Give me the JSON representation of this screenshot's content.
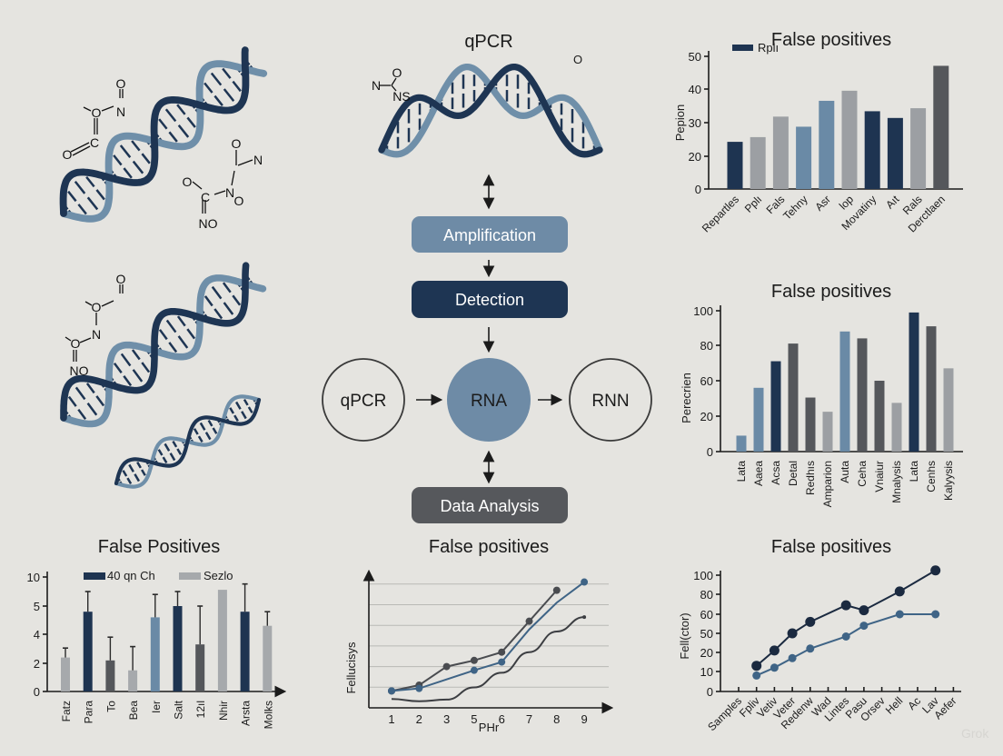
{
  "colors": {
    "background": "#e5e4e0",
    "navy": "#1e3451",
    "steel": "#6a8aa6",
    "gray": "#9c9fa3",
    "darkgray": "#55575b",
    "helix_light": "#6f8fa9",
    "helix_dark": "#1e3553"
  },
  "flow": {
    "title": "qPCR",
    "stray_label": "O",
    "boxes": [
      {
        "label": "Amplification",
        "color": "#6e8ba6"
      },
      {
        "label": "Detection",
        "color": "#1e3553"
      },
      {
        "label": "Data Analysis",
        "color": "#56585c"
      }
    ],
    "circles": [
      {
        "label": "qPCR",
        "filled": false
      },
      {
        "label": "RNA",
        "filled": true,
        "color": "#6e8ba6"
      },
      {
        "label": "RNN",
        "filled": false
      }
    ]
  },
  "molecules": {
    "m1": [
      "O",
      "O",
      "N",
      "O",
      "C"
    ],
    "m2": [
      "O",
      "N",
      "O",
      "N",
      "O",
      "C",
      "NO"
    ],
    "m3": [
      "O",
      "O",
      "N",
      "O",
      "NO"
    ],
    "m4": [
      "O",
      "N",
      "NS"
    ]
  },
  "watermark": "Grok",
  "chart_data": [
    {
      "type": "bar",
      "title": "False positives",
      "ylabel": "Pepion",
      "legend": [
        {
          "name": "Rplı",
          "color": "#1e3451"
        }
      ],
      "legend_placement": "top-left",
      "yticks": [
        0,
        20,
        30,
        40,
        50
      ],
      "categories": [
        "Repartles",
        "Pplı",
        "Fals",
        "Tehny",
        "Asr",
        "lop",
        "Movatiny",
        "Aıt",
        "Rals",
        "Derctlaen"
      ],
      "values": [
        24.3,
        25.7,
        31.8,
        28.8,
        36.5,
        39.5,
        33.4,
        31.4,
        34.3,
        47.1
      ],
      "bar_colors": [
        "#1e3451",
        "#9c9fa3",
        "#9c9fa3",
        "#6a8aa6",
        "#6a8aa6",
        "#9c9fa3",
        "#1e3451",
        "#1e3451",
        "#9c9fa3",
        "#55575b"
      ]
    },
    {
      "type": "bar",
      "title": "False positives",
      "ylabel": "Perecrien",
      "yticks": [
        0,
        20,
        60,
        80,
        100
      ],
      "categories": [
        "Lata",
        "Aaea",
        "Acsa",
        "Detal",
        "Redhıs",
        "Amparion",
        "Auta",
        "Ceha",
        "Vnaiur",
        "Mnalysis",
        "Lata",
        "Cenhs",
        "Kalyysis"
      ],
      "values": [
        9,
        52,
        71,
        81,
        41,
        25,
        88,
        84,
        60,
        35,
        99,
        91,
        67
      ],
      "bar_colors": [
        "#6a8aa6",
        "#6a8aa6",
        "#1e3451",
        "#55575b",
        "#55575b",
        "#9c9fa3",
        "#6a8aa6",
        "#55575b",
        "#55575b",
        "#9c9fa3",
        "#1e3451",
        "#55575b",
        "#9c9fa3"
      ]
    },
    {
      "type": "bar",
      "title": "False Positives",
      "yticks": [
        0,
        2,
        4,
        5,
        10
      ],
      "legend": [
        {
          "name": "40 qn Ch",
          "color": "#1e3451"
        },
        {
          "name": "Sezlo",
          "color": "#a6a9ac"
        }
      ],
      "legend_placement": "top",
      "categories": [
        "Fatz",
        "Para",
        "To",
        "Bea",
        "Ier",
        "Salt",
        "12ıl",
        "Nhir",
        "Arsta",
        "Molks"
      ],
      "values": [
        2.4,
        4.8,
        2.2,
        1.5,
        4.6,
        5.0,
        3.3,
        7.8,
        4.8,
        4.3
      ],
      "error_top": [
        3.05,
        7.5,
        3.8,
        3.15,
        7.0,
        7.5,
        5.0,
        null,
        8.8,
        4.8
      ],
      "bar_colors": [
        "#a6a9ac",
        "#1e3451",
        "#55575b",
        "#a6a9ac",
        "#6a8aa6",
        "#1e3451",
        "#55575b",
        "#a6a9ac",
        "#1e3451",
        "#a6a9ac"
      ]
    },
    {
      "type": "line",
      "title": "False positives",
      "xlabel": "PHr",
      "ylabel": "Fellucisys",
      "grid": true,
      "x": [
        "1",
        "2",
        "3",
        "5",
        "6",
        "7",
        "8",
        "9"
      ],
      "series": [
        {
          "color": "#4a4c50",
          "points": [
            [
              "1",
              0.82
            ],
            [
              "2",
              1.1
            ],
            [
              "3",
              2.0
            ],
            [
              "5",
              2.3
            ],
            [
              "6",
              2.7
            ],
            [
              "7",
              4.2
            ],
            [
              "8",
              5.7
            ]
          ],
          "markers": true
        },
        {
          "color": "#3f6486",
          "points": [
            [
              "1",
              0.82
            ],
            [
              "2",
              0.94
            ],
            [
              "5",
              1.82
            ],
            [
              "6",
              2.22
            ],
            [
              "7",
              3.8
            ],
            [
              "8",
              5.1
            ],
            [
              "9",
              6.1
            ]
          ],
          "marker_mask": [
            true,
            true,
            true,
            true,
            false,
            false,
            true
          ]
        },
        {
          "color": "#3c3e42",
          "points": [
            [
              "1",
              0.43
            ],
            [
              "2",
              0.32
            ],
            [
              "3",
              0.4
            ],
            [
              "5",
              0.99
            ],
            [
              "6",
              1.7
            ],
            [
              "7",
              2.7
            ],
            [
              "8",
              3.7
            ],
            [
              "9",
              4.4
            ]
          ],
          "markers": false,
          "smooth": true
        }
      ]
    },
    {
      "type": "line",
      "title": "False positives",
      "ylabel": "Fell(ctor)",
      "yticks": [
        0,
        10,
        20,
        50,
        60,
        80,
        100
      ],
      "categories": [
        "Samples",
        "Fpliv",
        "Vetiv",
        "Veter",
        "Redenw",
        "Wad",
        "Lintes",
        "Pasu",
        "Orsev",
        "Hell",
        "Ac",
        "Lav",
        "Aefer"
      ],
      "series": [
        {
          "color": "#1b2a40",
          "points": [
            [
              "Fpliv",
              13
            ],
            [
              "Vetiv",
              23
            ],
            [
              "Veter",
              50
            ],
            [
              "Redenw",
              56
            ],
            [
              "Lintes",
              69
            ],
            [
              "Pasu",
              64
            ],
            [
              "Hell",
              83
            ],
            [
              "Lav",
              105
            ]
          ]
        },
        {
          "color": "#3f6486",
          "points": [
            [
              "Fpliv",
              8
            ],
            [
              "Vetiv",
              12
            ],
            [
              "Veter",
              17
            ],
            [
              "Redenw",
              26
            ],
            [
              "Lintes",
              45
            ],
            [
              "Pasu",
              54
            ],
            [
              "Hell",
              60
            ],
            [
              "Lav",
              60
            ]
          ]
        }
      ]
    }
  ]
}
